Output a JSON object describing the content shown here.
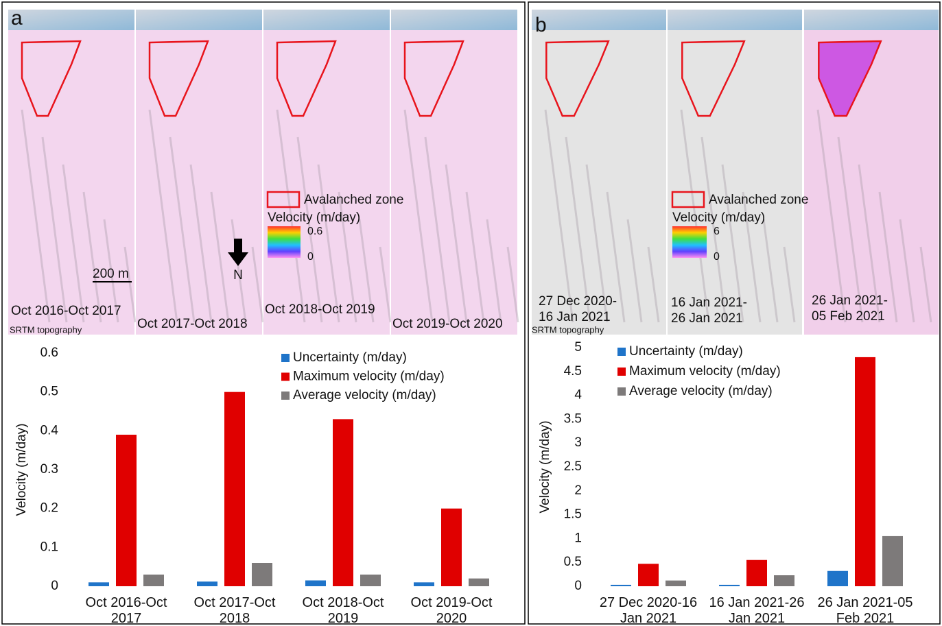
{
  "maps": [
    {
      "label": "a",
      "captions": [
        "Oct 2016-Oct 2017",
        "Oct 2017-Oct 2018",
        "Oct 2018-Oct 2019",
        "Oct 2019-Oct 2020"
      ],
      "legend_zone": "Avalanched zone",
      "legend_velocity": "Velocity (m/day)",
      "colorbar_max": 0.6,
      "colorbar_min": 0,
      "scale": "200 m",
      "north": "N",
      "source": "SRTM topography"
    },
    {
      "label": "b",
      "captions": [
        "27 Dec 2020-16 Jan 2021",
        "16 Jan 2021-26 Jan 2021",
        "26 Jan 2021-05 Feb 2021"
      ],
      "legend_zone": "Avalanched zone",
      "legend_velocity": "Velocity (m/day)",
      "colorbar_max": 6,
      "colorbar_min": 0,
      "source": "SRTM topography"
    }
  ],
  "chart_data": [
    {
      "type": "bar",
      "y_label": "Velocity (m/day)",
      "categories": [
        "Oct 2016-Oct 2017",
        "Oct 2017-Oct 2018",
        "Oct 2018-Oct 2019",
        "Oct 2019-Oct 2020"
      ],
      "series": [
        {
          "name": "Uncertainty (m/day)",
          "color": "#1f74c9",
          "values": [
            0.01,
            0.012,
            0.015,
            0.01
          ]
        },
        {
          "name": "Maximum velocity (m/day)",
          "color": "#e00000",
          "values": [
            0.39,
            0.5,
            0.43,
            0.2
          ]
        },
        {
          "name": "Average velocity (m/day)",
          "color": "#7d7a7a",
          "values": [
            0.03,
            0.06,
            0.03,
            0.02
          ]
        }
      ],
      "ylim": [
        0,
        0.6
      ],
      "yticks": [
        0,
        0.1,
        0.2,
        0.3,
        0.4,
        0.5,
        0.6
      ]
    },
    {
      "type": "bar",
      "y_label": "Velocity (m/day)",
      "categories": [
        "27 Dec 2020-16 Jan 2021",
        "16 Jan 2021-26 Jan 2021",
        "26 Jan 2021-05 Feb 2021"
      ],
      "series": [
        {
          "name": "Uncertainty (m/day)",
          "color": "#1f74c9",
          "values": [
            0.03,
            0.03,
            0.32
          ]
        },
        {
          "name": "Maximum velocity (m/day)",
          "color": "#e00000",
          "values": [
            0.47,
            0.55,
            4.8
          ]
        },
        {
          "name": "Average velocity (m/day)",
          "color": "#7d7a7a",
          "values": [
            0.12,
            0.23,
            1.05
          ]
        }
      ],
      "ylim": [
        0,
        5
      ],
      "yticks": [
        0,
        0.5,
        1,
        1.5,
        2,
        2.5,
        3,
        3.5,
        4,
        4.5,
        5
      ]
    }
  ]
}
